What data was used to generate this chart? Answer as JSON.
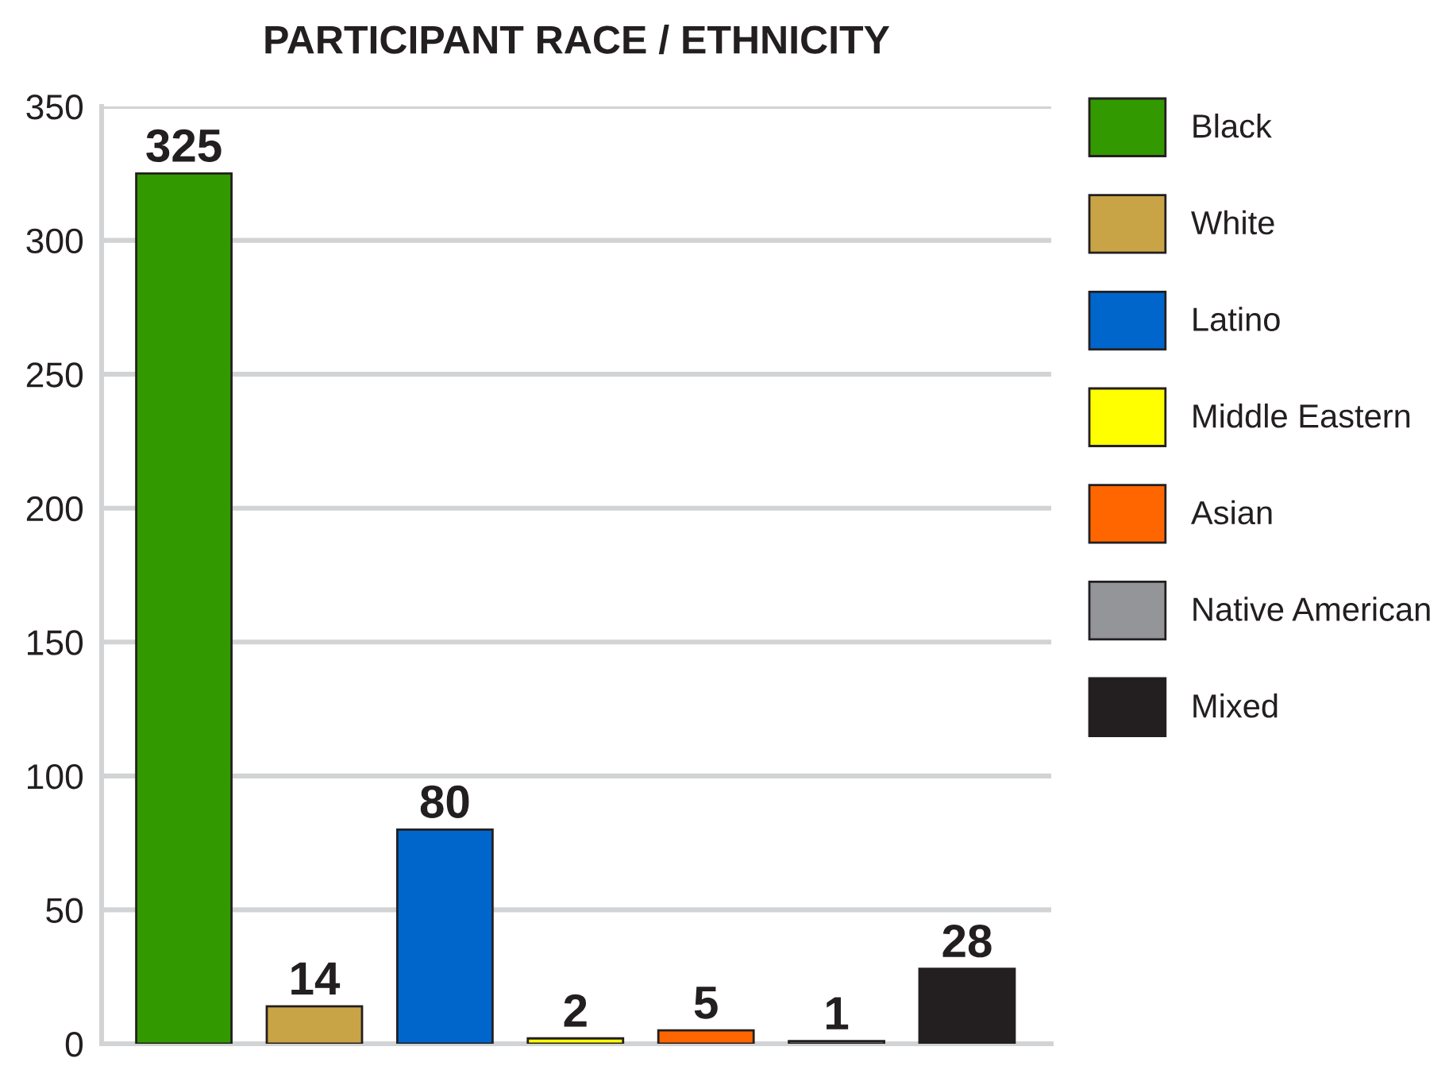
{
  "chart_data": {
    "type": "bar",
    "title": "PARTICIPANT RACE / ETHNICITY",
    "categories": [
      null,
      null,
      null,
      null,
      null,
      null,
      null
    ],
    "series": [
      {
        "name": "Black",
        "color": "#339900",
        "values": [
          325,
          null,
          null,
          null,
          null,
          null,
          null
        ]
      },
      {
        "name": "White",
        "color": "#c9a446",
        "values": [
          null,
          14,
          null,
          null,
          null,
          null,
          null
        ]
      },
      {
        "name": "Latino",
        "color": "#0066cc",
        "values": [
          null,
          null,
          80,
          null,
          null,
          null,
          null
        ]
      },
      {
        "name": "Middle Eastern",
        "color": "#ffff00",
        "values": [
          null,
          null,
          null,
          2,
          null,
          null,
          null
        ]
      },
      {
        "name": "Asian",
        "color": "#ff6600",
        "values": [
          null,
          null,
          null,
          null,
          5,
          null,
          null
        ]
      },
      {
        "name": "Native American",
        "color": "#939598",
        "values": [
          null,
          null,
          null,
          null,
          null,
          1,
          null
        ]
      },
      {
        "name": "Mixed",
        "color": "#231f20",
        "values": [
          null,
          null,
          null,
          null,
          null,
          null,
          28
        ]
      }
    ],
    "stacked": true,
    "ylim": [
      0,
      350
    ],
    "yticks": [
      0,
      50,
      100,
      150,
      200,
      250,
      300,
      350
    ],
    "grid": "y",
    "legend": "right",
    "data_labels": true
  }
}
